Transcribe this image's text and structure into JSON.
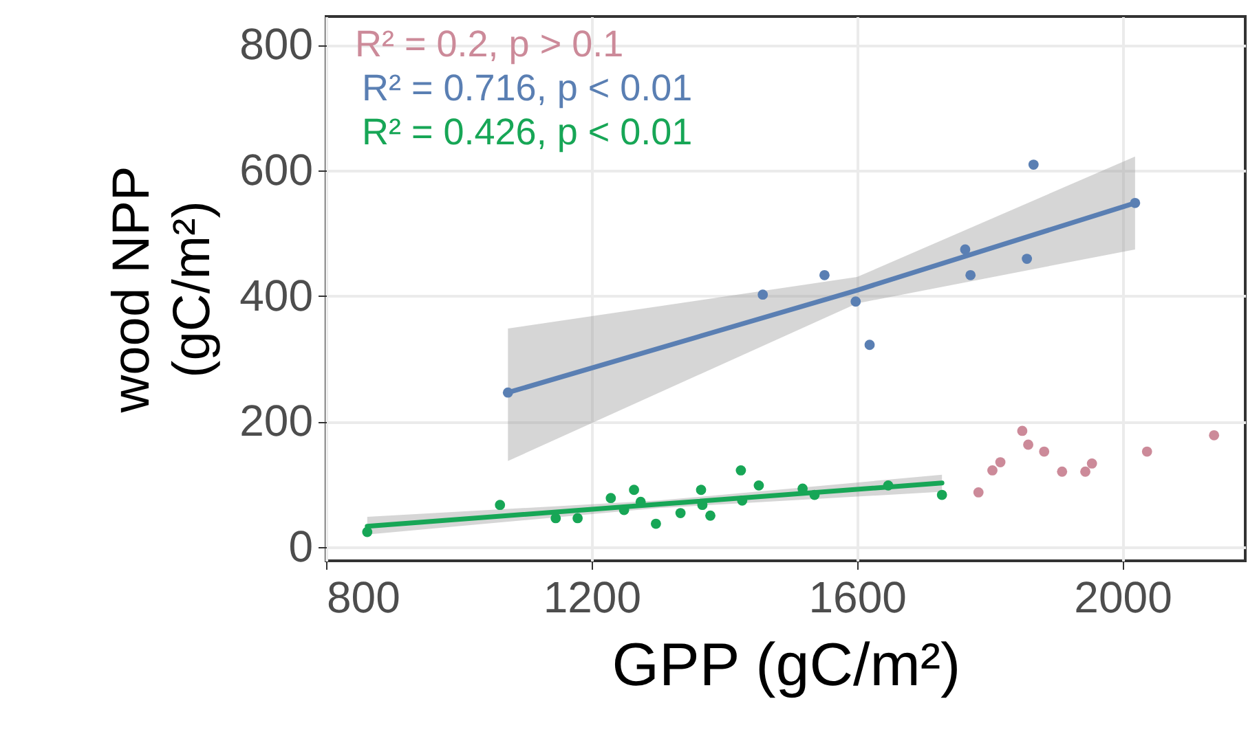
{
  "chart_data": {
    "type": "scatter",
    "xlabel": "GPP (gC/m²)",
    "ylabel": "wood NPP\n(gC/m²)",
    "xlim": [
      800,
      2185
    ],
    "xticks": [
      800,
      1200,
      1600,
      2000
    ],
    "ylim": [
      -22,
      845
    ],
    "yticks": [
      0,
      200,
      400,
      600,
      800
    ],
    "grid": true,
    "series": [
      {
        "marker": "circle",
        "color": "#cc8a99",
        "x": [
          1783,
          1804,
          1816,
          1849,
          1858,
          1882,
          1909,
          1944,
          1954,
          2037,
          2138
        ],
        "values": [
          87,
          122,
          135,
          185,
          163,
          152,
          120,
          120,
          133,
          152,
          178
        ]
      },
      {
        "marker": "circle",
        "color": "#5a7fb3",
        "x": [
          1074,
          1458,
          1551,
          1598,
          1619,
          1763,
          1771,
          1856,
          1866,
          2019
        ],
        "values": [
          246,
          402,
          433,
          391,
          322,
          474,
          433,
          459,
          609,
          548
        ]
      },
      {
        "marker": "circle",
        "color": "#17a656",
        "x": [
          862,
          1062,
          1146,
          1179,
          1229,
          1249,
          1264,
          1274,
          1297,
          1334,
          1365,
          1367,
          1379,
          1425,
          1427,
          1452,
          1518,
          1536,
          1647,
          1728
        ],
        "values": [
          24,
          67,
          46,
          46,
          78,
          59,
          91,
          72,
          37,
          54,
          91,
          67,
          50,
          122,
          74,
          98,
          93,
          83,
          98,
          83
        ]
      },
      {
        "type": "line",
        "marker": "none",
        "color": "#5a7fb3",
        "x": [
          1074,
          1600,
          2019
        ],
        "values": [
          246,
          409,
          548
        ],
        "lower": [
          137,
          388,
          474
        ],
        "upper": [
          348,
          430,
          622
        ]
      },
      {
        "type": "line",
        "marker": "none",
        "color": "#17a656",
        "x": [
          862,
          1300,
          1728
        ],
        "values": [
          33,
          68,
          102
        ],
        "lower": [
          20,
          62,
          88
        ],
        "upper": [
          48,
          74,
          115
        ]
      }
    ],
    "annotations": [
      "R² = 0.2, p > 0.1",
      "R² = 0.716, p < 0.01",
      "R² = 0.426, p < 0.01"
    ]
  }
}
